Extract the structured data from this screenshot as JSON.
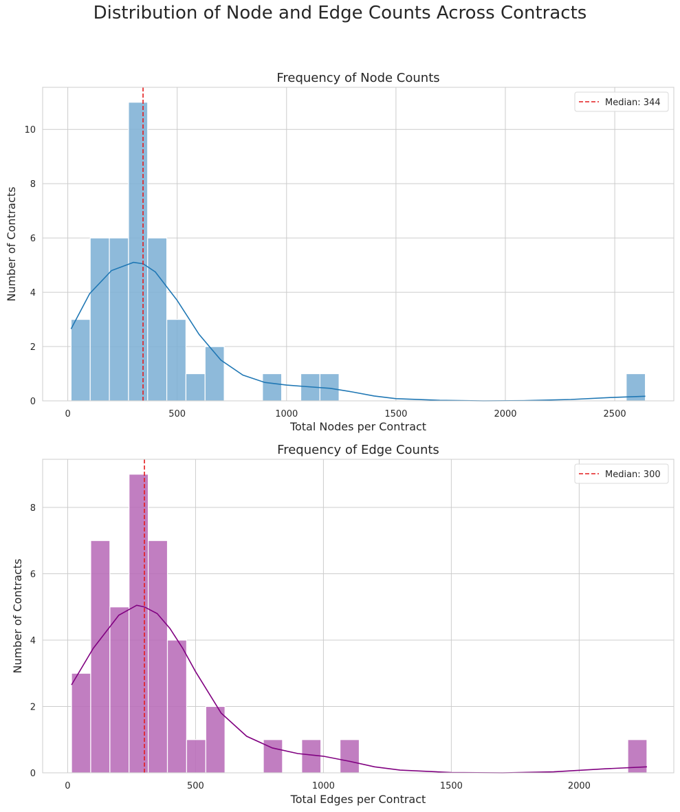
{
  "suptitle": "Distribution of Node and Edge Counts Across Contracts",
  "chart_data": [
    {
      "type": "bar",
      "title": "Frequency of Node Counts",
      "xlabel": "Total Nodes per Contract",
      "ylabel": "Number of Contracts",
      "xlim": [
        -115,
        2770
      ],
      "ylim": [
        0,
        11.55
      ],
      "xticks": [
        0,
        500,
        1000,
        1500,
        2000,
        2500
      ],
      "yticks": [
        0,
        2,
        4,
        6,
        8,
        10
      ],
      "grid": true,
      "bin_start": 15,
      "bin_width": 87.5,
      "counts": [
        3,
        6,
        6,
        11,
        6,
        3,
        1,
        2,
        0,
        0,
        1,
        0,
        1,
        1,
        0,
        0,
        0,
        0,
        0,
        0,
        0,
        0,
        0,
        0,
        0,
        0,
        0,
        0,
        0,
        1
      ],
      "bar_color": "#7eb0d5",
      "kde_color": "#1f77b4",
      "kde": {
        "x": [
          15,
          100,
          200,
          300,
          344,
          400,
          500,
          600,
          700,
          800,
          900,
          1000,
          1100,
          1200,
          1300,
          1400,
          1500,
          1700,
          1900,
          2100,
          2300,
          2500,
          2640
        ],
        "y": [
          2.65,
          3.95,
          4.8,
          5.1,
          5.05,
          4.75,
          3.7,
          2.45,
          1.5,
          0.95,
          0.68,
          0.58,
          0.52,
          0.46,
          0.33,
          0.18,
          0.08,
          0.02,
          0.0,
          0.01,
          0.05,
          0.13,
          0.17
        ]
      },
      "median": 344,
      "median_color": "#e41a1c",
      "legend": {
        "label": "Median: 344",
        "position": "top-right"
      }
    },
    {
      "type": "bar",
      "title": "Frequency of Edge Counts",
      "xlabel": "Total Edges per Contract",
      "ylabel": "Number of Contracts",
      "xlim": [
        -98,
        2370
      ],
      "ylim": [
        0,
        9.45
      ],
      "xticks": [
        0,
        500,
        1000,
        1500,
        2000
      ],
      "yticks": [
        0,
        2,
        4,
        6,
        8
      ],
      "grid": true,
      "bin_start": 15,
      "bin_width": 75,
      "counts": [
        3,
        7,
        5,
        9,
        7,
        4,
        1,
        2,
        0,
        0,
        1,
        0,
        1,
        0,
        1,
        0,
        0,
        0,
        0,
        0,
        0,
        0,
        0,
        0,
        0,
        0,
        0,
        0,
        0,
        1
      ],
      "bar_color": "#b86cb8",
      "kde_color": "#800080",
      "kde": {
        "x": [
          15,
          100,
          200,
          270,
          300,
          350,
          400,
          450,
          500,
          600,
          700,
          800,
          900,
          1000,
          1100,
          1200,
          1300,
          1500,
          1700,
          1900,
          2100,
          2265
        ],
        "y": [
          2.65,
          3.75,
          4.75,
          5.05,
          5.0,
          4.8,
          4.35,
          3.75,
          3.05,
          1.8,
          1.1,
          0.75,
          0.58,
          0.5,
          0.35,
          0.18,
          0.08,
          0.01,
          0.0,
          0.03,
          0.12,
          0.18
        ]
      },
      "median": 300,
      "median_color": "#e41a1c",
      "legend": {
        "label": "Median: 300",
        "position": "top-right"
      }
    }
  ]
}
